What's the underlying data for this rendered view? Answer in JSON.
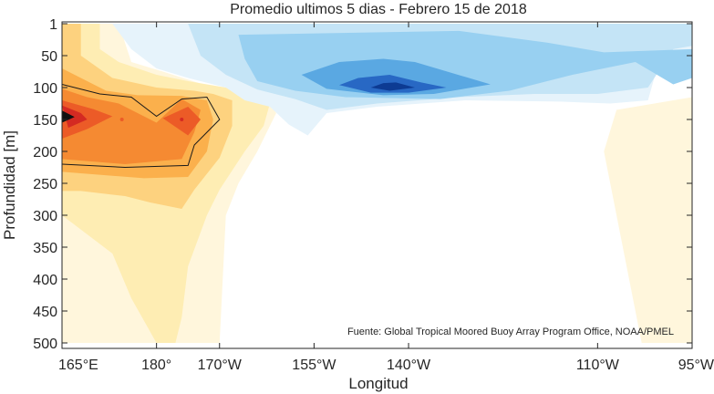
{
  "chart_data": {
    "type": "contour",
    "title": "Promedio ultimos 5 dias - Febrero 15 de 2018",
    "xlabel": "Longitud",
    "ylabel": "Profundidad [m]",
    "x_ticks": [
      {
        "lon": 165,
        "label": "165°E"
      },
      {
        "lon": 180,
        "label": "180°"
      },
      {
        "lon": 190,
        "label": "170°W"
      },
      {
        "lon": 205,
        "label": "155°W"
      },
      {
        "lon": 220,
        "label": "140°W"
      },
      {
        "lon": 250,
        "label": "110°W"
      },
      {
        "lon": 265,
        "label": "95°W"
      }
    ],
    "y_ticks": [
      {
        "depth": 1,
        "label": "1"
      },
      {
        "depth": 50,
        "label": "50"
      },
      {
        "depth": 100,
        "label": "100"
      },
      {
        "depth": 150,
        "label": "150"
      },
      {
        "depth": 200,
        "label": "200"
      },
      {
        "depth": 250,
        "label": "250"
      },
      {
        "depth": 300,
        "label": "300"
      },
      {
        "depth": 350,
        "label": "350"
      },
      {
        "depth": 400,
        "label": "400"
      },
      {
        "depth": 450,
        "label": "450"
      },
      {
        "depth": 500,
        "label": "500"
      }
    ],
    "xlim": [
      165,
      265
    ],
    "ylim": [
      500,
      1
    ],
    "y_reversed": true,
    "grid": false,
    "annotation": "Fuente: Global Tropical Moored Buoy Array Program Office, NOAA/PMEL",
    "contour_level_colors": {
      "pos1": "#fff6dc",
      "pos2": "#feedb3",
      "pos3": "#fdd27f",
      "pos4": "#fbb04c",
      "pos5": "#f58a32",
      "pos6": "#ec5b27",
      "pos7": "#d42a22",
      "pos8": "#111111",
      "neg1": "#e6f3fb",
      "neg2": "#c4e4f6",
      "neg3": "#98d0f1",
      "neg4": "#5aa8e2",
      "neg5": "#2868c4",
      "neg6": "#0d3b93"
    },
    "regions": [
      {
        "level": "pos1",
        "points": [
          [
            165,
            1
          ],
          [
            174,
            1
          ],
          [
            176,
            60
          ],
          [
            181,
            75
          ],
          [
            189,
            100
          ],
          [
            194,
            115
          ],
          [
            198,
            125
          ],
          [
            199,
            140
          ],
          [
            196,
            200
          ],
          [
            193,
            250
          ],
          [
            191,
            300
          ],
          [
            190,
            500
          ],
          [
            165,
            500
          ]
        ]
      },
      {
        "level": "pos1",
        "points": [
          [
            253,
            135
          ],
          [
            265,
            115
          ],
          [
            265,
            500
          ],
          [
            257,
            500
          ],
          [
            251,
            200
          ]
        ]
      },
      {
        "level": "pos2",
        "points": [
          [
            165,
            1
          ],
          [
            171,
            1
          ],
          [
            171,
            40
          ],
          [
            174,
            60
          ],
          [
            180,
            80
          ],
          [
            185,
            90
          ],
          [
            191,
            100
          ],
          [
            195,
            110
          ],
          [
            198,
            125
          ],
          [
            197,
            160
          ],
          [
            194,
            200
          ],
          [
            190,
            260
          ],
          [
            188,
            300
          ],
          [
            185,
            380
          ],
          [
            184,
            460
          ],
          [
            183,
            500
          ],
          [
            180,
            500
          ],
          [
            176,
            430
          ],
          [
            173,
            360
          ],
          [
            165,
            300
          ]
        ]
      },
      {
        "level": "pos3",
        "points": [
          [
            165,
            1
          ],
          [
            168,
            1
          ],
          [
            168,
            50
          ],
          [
            173,
            85
          ],
          [
            180,
            100
          ],
          [
            186,
            105
          ],
          [
            189,
            110
          ],
          [
            192,
            120
          ],
          [
            192,
            160
          ],
          [
            190,
            210
          ],
          [
            186,
            260
          ],
          [
            184,
            290
          ],
          [
            179,
            280
          ],
          [
            175,
            270
          ],
          [
            168,
            262
          ],
          [
            165,
            262
          ]
        ]
      },
      {
        "level": "pos4",
        "points": [
          [
            165,
            70
          ],
          [
            172,
            105
          ],
          [
            177,
            112
          ],
          [
            184,
            113
          ],
          [
            188,
            120
          ],
          [
            189,
            150
          ],
          [
            188,
            200
          ],
          [
            185,
            240
          ],
          [
            178,
            242
          ],
          [
            165,
            232
          ]
        ]
      },
      {
        "level": "pos5",
        "points": [
          [
            165,
            102
          ],
          [
            169,
            115
          ],
          [
            174,
            125
          ],
          [
            180,
            155
          ],
          [
            184,
            118
          ],
          [
            187,
            135
          ],
          [
            186,
            170
          ],
          [
            184,
            212
          ],
          [
            175,
            220
          ],
          [
            165,
            212
          ]
        ]
      },
      {
        "level": "pos6",
        "points": [
          [
            165,
            120
          ],
          [
            170,
            134
          ],
          [
            173,
            145
          ],
          [
            169,
            165
          ],
          [
            165,
            180
          ]
        ]
      },
      {
        "level": "pos6",
        "points": [
          [
            181,
            148
          ],
          [
            185,
            130
          ],
          [
            187,
            150
          ],
          [
            185,
            175
          ]
        ]
      },
      {
        "level": "pos7",
        "points": [
          [
            165,
            128
          ],
          [
            168,
            140
          ],
          [
            169,
            150
          ],
          [
            166,
            163
          ]
        ]
      },
      {
        "level": "pos8",
        "points": [
          [
            165,
            136
          ],
          [
            167,
            146
          ],
          [
            165,
            155
          ]
        ]
      },
      {
        "level": "neg1",
        "points": [
          [
            173,
            1
          ],
          [
            265,
            1
          ],
          [
            265,
            40
          ],
          [
            260,
            50
          ],
          [
            258,
            120
          ],
          [
            252,
            125
          ],
          [
            244,
            122
          ],
          [
            229,
            120
          ],
          [
            215,
            130
          ],
          [
            207,
            140
          ],
          [
            204,
            175
          ],
          [
            201,
            158
          ],
          [
            198,
            130
          ],
          [
            194,
            120
          ],
          [
            191,
            100
          ],
          [
            185,
            85
          ],
          [
            180,
            70
          ],
          [
            176,
            40
          ]
        ]
      },
      {
        "level": "neg2",
        "points": [
          [
            185,
            1
          ],
          [
            265,
            1
          ],
          [
            265,
            35
          ],
          [
            262,
            40
          ],
          [
            258,
            100
          ],
          [
            250,
            110
          ],
          [
            240,
            110
          ],
          [
            228,
            115
          ],
          [
            215,
            125
          ],
          [
            207,
            135
          ],
          [
            202,
            118
          ],
          [
            196,
            103
          ],
          [
            191,
            80
          ],
          [
            187,
            50
          ]
        ]
      },
      {
        "level": "neg3",
        "points": [
          [
            193,
            18
          ],
          [
            228,
            12
          ],
          [
            242,
            30
          ],
          [
            251,
            45
          ],
          [
            265,
            40
          ],
          [
            265,
            85
          ],
          [
            262,
            95
          ],
          [
            256,
            60
          ],
          [
            246,
            80
          ],
          [
            236,
            105
          ],
          [
            225,
            118
          ],
          [
            210,
            115
          ],
          [
            202,
            105
          ],
          [
            196,
            90
          ],
          [
            194,
            55
          ]
        ]
      },
      {
        "level": "neg4",
        "points": [
          [
            203,
            80
          ],
          [
            209,
            60
          ],
          [
            216,
            55
          ],
          [
            221,
            60
          ],
          [
            233,
            95
          ],
          [
            224,
            110
          ],
          [
            216,
            112
          ],
          [
            207,
            102
          ]
        ]
      },
      {
        "level": "neg5",
        "points": [
          [
            209,
            96
          ],
          [
            212,
            85
          ],
          [
            217,
            80
          ],
          [
            222,
            92
          ],
          [
            226,
            100
          ],
          [
            220,
            108
          ],
          [
            214,
            108
          ]
        ]
      },
      {
        "level": "neg6",
        "points": [
          [
            214,
            100
          ],
          [
            216,
            93
          ],
          [
            218,
            92
          ],
          [
            221,
            100
          ],
          [
            217,
            105
          ]
        ]
      }
    ],
    "contour_lines": [
      {
        "value": "highlight",
        "points": [
          [
            165,
            95
          ],
          [
            171,
            110
          ],
          [
            176,
            115
          ],
          [
            180,
            145
          ],
          [
            184,
            118
          ],
          [
            188,
            115
          ],
          [
            190,
            150
          ],
          [
            186,
            190
          ],
          [
            185,
            222
          ],
          [
            175,
            225
          ],
          [
            165,
            220
          ]
        ]
      }
    ],
    "point_markers": [
      {
        "lon": 174.5,
        "depth": 150,
        "color": "#ec5b27"
      },
      {
        "lon": 184,
        "depth": 150,
        "color": "#d42a22"
      }
    ]
  }
}
